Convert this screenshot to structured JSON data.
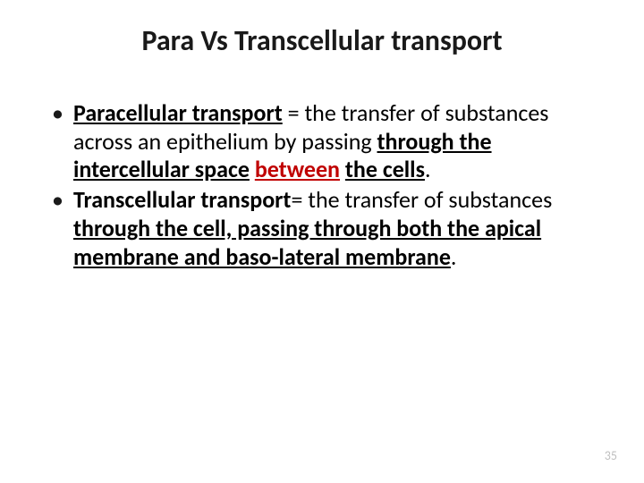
{
  "title": {
    "text": "Para Vs Transcellular transport",
    "fontsize": 32,
    "color": "#1a1a1a"
  },
  "bullets": [
    {
      "spans": [
        {
          "text": "Paracellular transport",
          "bold": true,
          "underline": true,
          "color": "#000000"
        },
        {
          "text": " ",
          "bold": false,
          "underline": false,
          "color": "#000000"
        },
        {
          "text": "= the transfer of substances across an epithelium by passing ",
          "bold": false,
          "underline": false,
          "color": "#000000"
        },
        {
          "text": "through the intercellular space",
          "bold": true,
          "underline": true,
          "color": "#000000"
        },
        {
          "text": " ",
          "bold": true,
          "underline": false,
          "color": "#000000"
        },
        {
          "text": "between",
          "bold": true,
          "underline": true,
          "color": "#c00000"
        },
        {
          "text": " ",
          "bold": true,
          "underline": false,
          "color": "#000000"
        },
        {
          "text": "the cells",
          "bold": true,
          "underline": true,
          "color": "#000000"
        },
        {
          "text": ".",
          "bold": false,
          "underline": false,
          "color": "#000000"
        }
      ]
    },
    {
      "spans": [
        {
          "text": "Transcellular transport",
          "bold": true,
          "underline": false,
          "color": "#000000"
        },
        {
          "text": "= the transfer of substances ",
          "bold": false,
          "underline": false,
          "color": "#000000"
        },
        {
          "text": "through the cell, passing through both the apical membrane and baso-lateral membrane",
          "bold": true,
          "underline": true,
          "color": "#000000"
        },
        {
          "text": ". ",
          "bold": false,
          "underline": false,
          "color": "#000000"
        }
      ]
    }
  ],
  "body": {
    "fontsize": 26,
    "lineheight": 1.22
  },
  "pageNumber": {
    "value": "35",
    "fontsize": 14,
    "color": "#bfbfbf"
  },
  "background": "#ffffff"
}
